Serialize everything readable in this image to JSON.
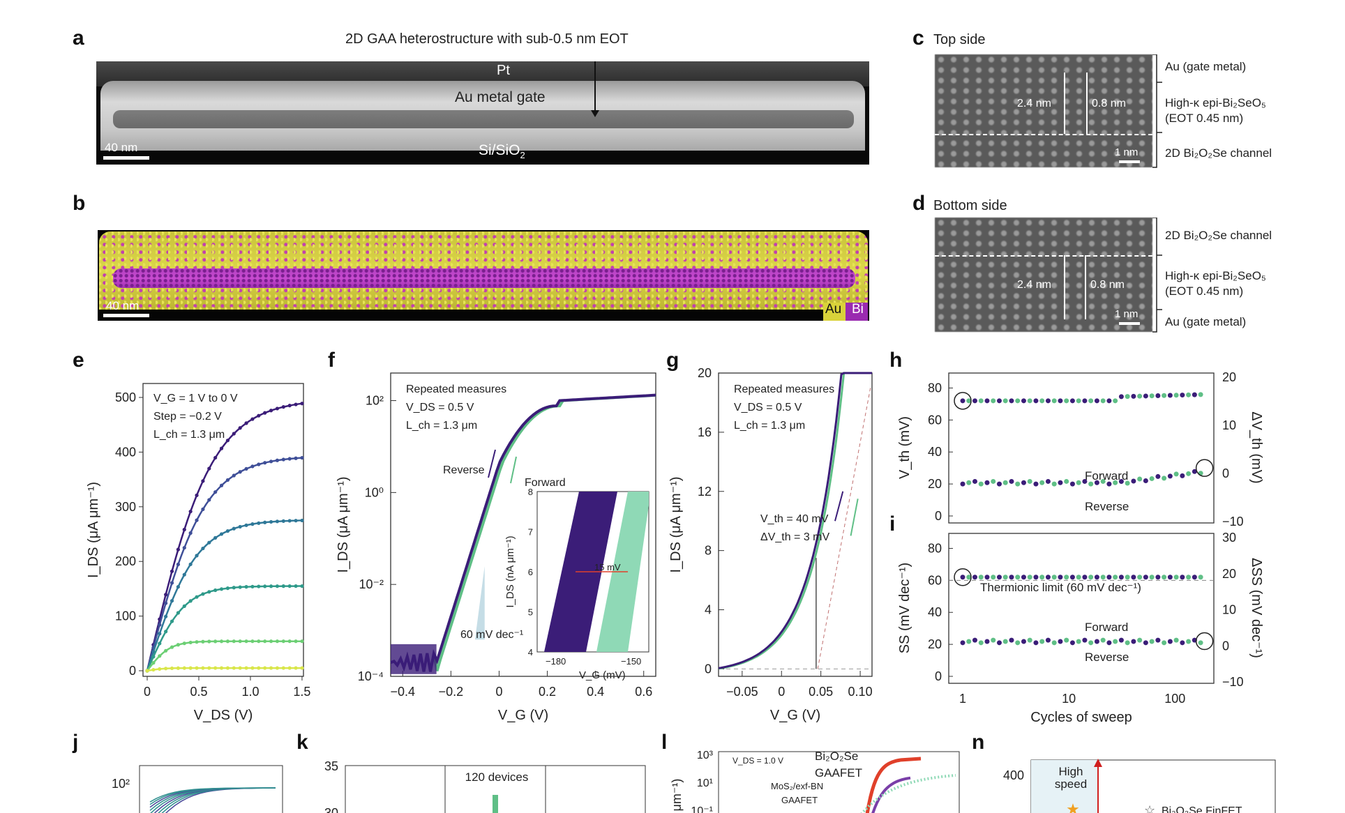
{
  "labels": {
    "a": "a",
    "b": "b",
    "c": "c",
    "d": "d",
    "e": "e",
    "f": "f",
    "g": "g",
    "h": "h",
    "i": "i",
    "j": "j",
    "k": "k",
    "l": "l",
    "n": "n"
  },
  "panel_a": {
    "title": "2D GAA heterostructure with sub-0.5 nm EOT",
    "pt": "Pt",
    "gate": "Au metal gate",
    "substrate": "Si/SiO",
    "substrate_sub": "2",
    "scale": "40 nm"
  },
  "panel_b": {
    "scale": "40 nm",
    "legend_au": "Au",
    "legend_bi": "Bi"
  },
  "panel_c": {
    "title": "Top side",
    "dim_total": "2.4 nm",
    "dim_inner": "0.8 nm",
    "scale": "1 nm",
    "layer_top": "Au (gate metal)",
    "layer_mid_1": "High-κ epi-Bi₂SeO₅",
    "layer_mid_2": "(EOT 0.45 nm)",
    "layer_bottom": "2D Bi₂O₂Se channel"
  },
  "panel_d": {
    "title": "Bottom side",
    "dim_total": "2.4 nm",
    "dim_inner": "0.8 nm",
    "scale": "1 nm",
    "layer_top": "2D Bi₂O₂Se channel",
    "layer_mid_1": "High-κ epi-Bi₂SeO₅",
    "layer_mid_2": "(EOT 0.45 nm)",
    "layer_bottom": "Au (gate metal)"
  },
  "colors": {
    "purple": "#3b1d78",
    "teal": "#2f8f8f",
    "green": "#5fbf86",
    "yellow": "#e4e04a",
    "red": "#e0402a",
    "lightgreen": "#8fd9b6"
  },
  "chart_data": [
    {
      "id": "e",
      "type": "line",
      "xlabel": "V_DS (V)",
      "ylabel": "I_DS (μA μm⁻¹)",
      "xlim": [
        0,
        1.5
      ],
      "ylim": [
        0,
        500
      ],
      "xticks": [
        "0",
        "0.5",
        "1.0",
        "1.5"
      ],
      "yticks": [
        "0",
        "100",
        "200",
        "300",
        "400",
        "500"
      ],
      "annotations": [
        "V_G = 1 V to 0 V",
        "Step = −0.2 V",
        "L_ch = 1.3 μm"
      ],
      "series": [
        {
          "vg": 1.0,
          "sat": 497,
          "k": 1.6
        },
        {
          "vg": 0.8,
          "sat": 393,
          "k": 1.9
        },
        {
          "vg": 0.6,
          "sat": 276,
          "k": 2.3
        },
        {
          "vg": 0.4,
          "sat": 155,
          "k": 3.2
        },
        {
          "vg": 0.2,
          "sat": 54,
          "k": 5.5
        },
        {
          "vg": 0.0,
          "sat": 5,
          "k": 8
        }
      ]
    },
    {
      "id": "f",
      "type": "line",
      "xlabel": "V_G (V)",
      "ylabel": "I_DS (μA μm⁻¹)",
      "xlim": [
        -0.45,
        0.65
      ],
      "ylim_log": [
        -4,
        2.6
      ],
      "xticks": [
        "−0.4",
        "−0.2",
        "0",
        "0.2",
        "0.4",
        "0.6"
      ],
      "yticks": [
        "10⁻⁴",
        "10⁻²",
        "10⁰",
        "10²"
      ],
      "annotations": [
        "Repeated measures",
        "V_DS = 0.5 V",
        "L_ch = 1.3 μm",
        "Reverse",
        "Forward",
        "60 mV dec⁻¹"
      ],
      "inset": {
        "xlabel": "V_G (mV)",
        "ylabel": "I_DS (nA μm⁻¹)",
        "xticks": [
          "−180",
          "−150"
        ],
        "yticks": [
          "4",
          "5",
          "6",
          "7",
          "8"
        ],
        "note": "15 mV"
      }
    },
    {
      "id": "g",
      "type": "line",
      "xlabel": "V_G (V)",
      "ylabel": "I_DS (μA μm⁻¹)",
      "xlim": [
        -0.08,
        0.115
      ],
      "ylim": [
        -0.5,
        20
      ],
      "xticks": [
        "−0.05",
        "0",
        "0.05",
        "0.10"
      ],
      "yticks": [
        "0",
        "4",
        "8",
        "12",
        "16",
        "20"
      ],
      "annotations": [
        "Repeated measures",
        "V_DS = 0.5 V",
        "L_ch = 1.3 μm",
        "V_th = 40 mV",
        "ΔV_th = 3 mV"
      ]
    },
    {
      "id": "h",
      "type": "scatter",
      "xlabel": "",
      "ylabel": "V_th (mV)",
      "ylabel_right": "ΔV_th (mV)",
      "xlim_log": [
        0.9,
        200
      ],
      "ylim": [
        0,
        85
      ],
      "yticks": [
        "0",
        "20",
        "40",
        "60",
        "80"
      ],
      "yticks_right": [
        "−10",
        "0",
        "10",
        "20"
      ],
      "annotations": [
        "Forward",
        "Reverse"
      ]
    },
    {
      "id": "i",
      "type": "scatter",
      "xlabel": "Cycles of sweep",
      "ylabel": "SS (mV dec⁻¹)",
      "ylabel_right": "ΔSS (mV dec⁻¹)",
      "xticks": [
        "1",
        "10",
        "100"
      ],
      "yticks": [
        "0",
        "20",
        "40",
        "60",
        "80"
      ],
      "yticks_right": [
        "−10",
        "0",
        "10",
        "20",
        "30"
      ],
      "annotations": [
        "Thermionic limit (60 mV dec⁻¹)",
        "Forward",
        "Reverse"
      ]
    },
    {
      "id": "j",
      "type": "line",
      "yticks": [
        "10²"
      ]
    },
    {
      "id": "k",
      "type": "bar",
      "yticks": [
        "30",
        "35"
      ],
      "annotation": "120 devices"
    },
    {
      "id": "l",
      "type": "line",
      "yticks": [
        "10³",
        "10¹",
        "10⁻¹"
      ],
      "annotations": [
        "V_DS = 1.0 V",
        "Bi₂O₂Se",
        "GAAFET",
        "MoS₂/exf-BN",
        "GAAFET"
      ],
      "ylabel_fragment": "μm⁻¹)"
    },
    {
      "id": "n",
      "type": "scatter",
      "yticks": [
        "400"
      ],
      "annotations": [
        "High",
        "speed",
        "Bi₂O₂Se FinFET"
      ]
    }
  ]
}
